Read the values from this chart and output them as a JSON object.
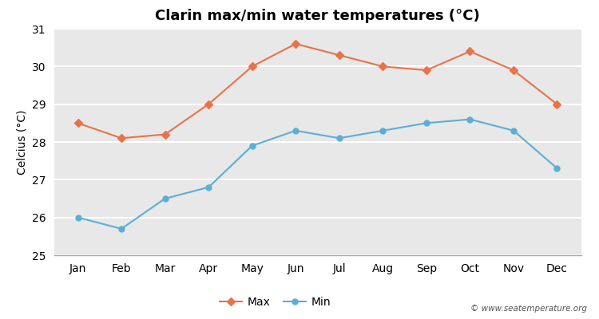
{
  "months": [
    "Jan",
    "Feb",
    "Mar",
    "Apr",
    "May",
    "Jun",
    "Jul",
    "Aug",
    "Sep",
    "Oct",
    "Nov",
    "Dec"
  ],
  "max_temps": [
    28.5,
    28.1,
    28.2,
    29.0,
    30.0,
    30.6,
    30.3,
    30.0,
    29.9,
    30.4,
    29.9,
    29.0
  ],
  "min_temps": [
    26.0,
    25.7,
    26.5,
    26.8,
    27.9,
    28.3,
    28.1,
    28.3,
    28.5,
    28.6,
    28.3,
    27.3
  ],
  "max_color": "#e8734a",
  "min_color": "#5bafd6",
  "title": "Clarin max/min water temperatures (°C)",
  "ylabel": "Celcius (°C)",
  "ylim": [
    25,
    31
  ],
  "yticks": [
    25,
    26,
    27,
    28,
    29,
    30,
    31
  ],
  "outer_bg": "#ffffff",
  "plot_bg_color": "#e8e8e8",
  "grid_color": "#ffffff",
  "watermark": "© www.seatemperature.org",
  "legend_max": "Max",
  "legend_min": "Min",
  "title_fontsize": 13,
  "axis_fontsize": 10,
  "tick_fontsize": 10
}
